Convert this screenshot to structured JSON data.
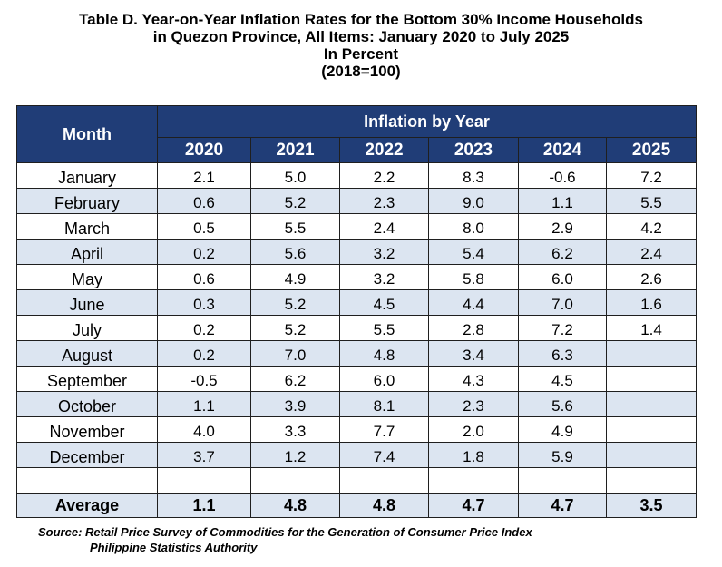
{
  "title": {
    "line1": "Table D. Year-on-Year Inflation Rates for the Bottom 30% Income Households",
    "line2": "in Quezon Province, All Items: January 2020 to July 2025",
    "line3": "In Percent",
    "line4": "(2018=100)"
  },
  "table": {
    "month_header": "Month",
    "group_header": "Inflation by Year",
    "years": [
      "2020",
      "2021",
      "2022",
      "2023",
      "2024",
      "2025"
    ],
    "rows": [
      {
        "month": "January",
        "values": [
          "2.1",
          "5.0",
          "2.2",
          "8.3",
          "-0.6",
          "7.2"
        ]
      },
      {
        "month": "February",
        "values": [
          "0.6",
          "5.2",
          "2.3",
          "9.0",
          "1.1",
          "5.5"
        ]
      },
      {
        "month": "March",
        "values": [
          "0.5",
          "5.5",
          "2.4",
          "8.0",
          "2.9",
          "4.2"
        ]
      },
      {
        "month": "April",
        "values": [
          "0.2",
          "5.6",
          "3.2",
          "5.4",
          "6.2",
          "2.4"
        ]
      },
      {
        "month": "May",
        "values": [
          "0.6",
          "4.9",
          "3.2",
          "5.8",
          "6.0",
          "2.6"
        ]
      },
      {
        "month": "June",
        "values": [
          "0.3",
          "5.2",
          "4.5",
          "4.4",
          "7.0",
          "1.6"
        ]
      },
      {
        "month": "July",
        "values": [
          "0.2",
          "5.2",
          "5.5",
          "2.8",
          "7.2",
          "1.4"
        ]
      },
      {
        "month": "August",
        "values": [
          "0.2",
          "7.0",
          "4.8",
          "3.4",
          "6.3",
          ""
        ]
      },
      {
        "month": "September",
        "values": [
          "-0.5",
          "6.2",
          "6.0",
          "4.3",
          "4.5",
          ""
        ]
      },
      {
        "month": "October",
        "values": [
          "1.1",
          "3.9",
          "8.1",
          "2.3",
          "5.6",
          ""
        ]
      },
      {
        "month": "November",
        "values": [
          "4.0",
          "3.3",
          "7.7",
          "2.0",
          "4.9",
          ""
        ]
      },
      {
        "month": "December",
        "values": [
          "3.7",
          "1.2",
          "7.4",
          "1.8",
          "5.9",
          ""
        ]
      }
    ],
    "average": {
      "label": "Average",
      "values": [
        "1.1",
        "4.8",
        "4.8",
        "4.7",
        "4.7",
        "3.5"
      ]
    }
  },
  "source": {
    "line1": "Source: Retail Price Survey of Commodities for the Generation of Consumer Price Index",
    "line2": "Philippine Statistics Authority"
  }
}
